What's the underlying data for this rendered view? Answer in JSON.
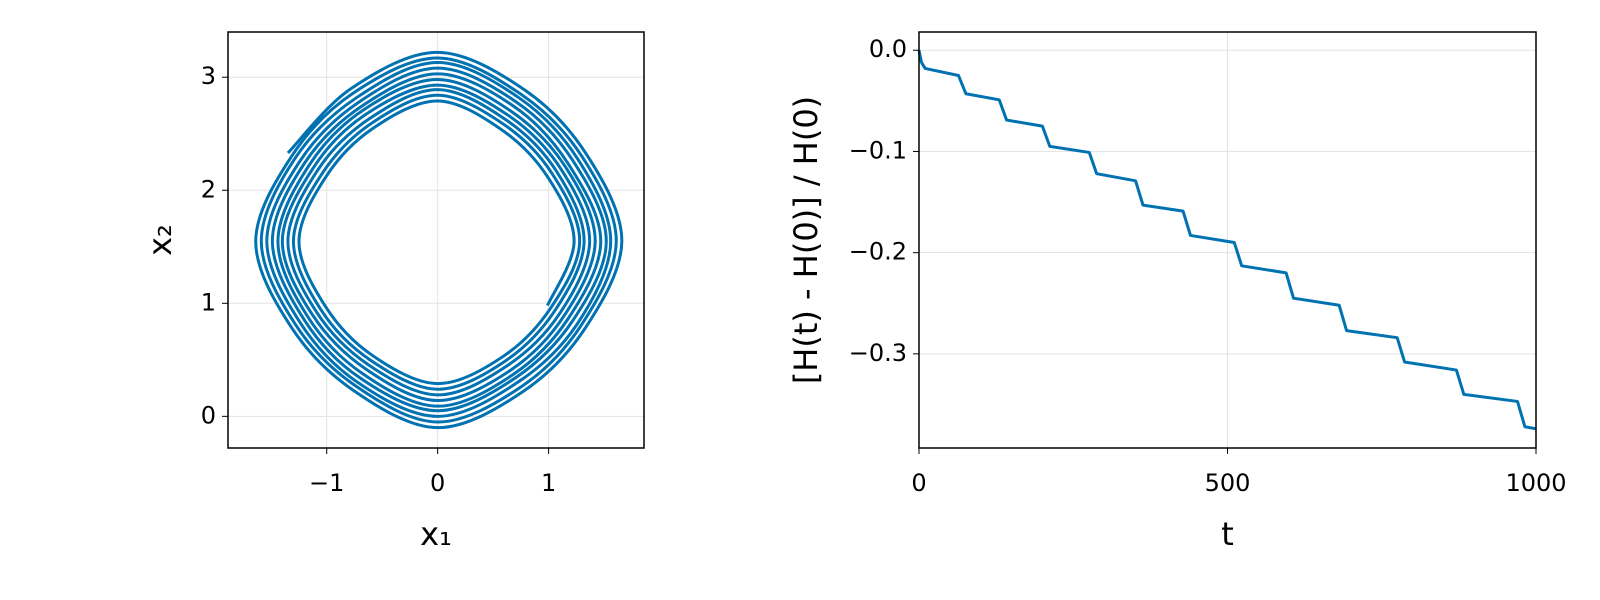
{
  "chart_data": [
    {
      "type": "line",
      "xlabel": "x₁",
      "ylabel": "x₂",
      "color": "#0072b2",
      "grid": true,
      "xlim": [
        -1.89,
        1.86
      ],
      "ylim": [
        -0.28,
        3.4
      ],
      "xticks": [
        {
          "value": -1,
          "label": "−1"
        },
        0,
        1
      ],
      "yticks": [
        0,
        1,
        2,
        3
      ],
      "x": [
        -1.35,
        -0.78,
        0,
        0.78,
        1.34,
        1.66,
        1.33,
        0.77,
        0,
        -0.76,
        -1.32,
        -1.64,
        -1.31,
        -0.76,
        0,
        0.75,
        1.3,
        1.61,
        1.29,
        0.75,
        0,
        -0.74,
        -1.28,
        -1.59,
        -1.28,
        -0.73,
        0,
        0.73,
        1.26,
        1.56,
        1.26,
        0.72,
        0,
        -0.72,
        -1.24,
        -1.54,
        -1.24,
        -0.71,
        0,
        0.71,
        1.22,
        1.52,
        1.22,
        0.7,
        0,
        -0.7,
        -1.2,
        -1.49,
        -1.2,
        -0.69,
        0,
        0.69,
        1.18,
        1.47,
        1.18,
        0.68,
        0,
        -0.68,
        -1.17,
        -1.44,
        -1.16,
        -0.67,
        0,
        0.66,
        1.15,
        1.42,
        1.14,
        0.66,
        0,
        -0.65,
        -1.13,
        -1.4,
        -1.12,
        -0.65,
        0,
        0.64,
        1.11,
        1.37,
        1.1,
        0.63,
        0,
        -0.63,
        -1.09,
        -1.35,
        -1.08,
        -0.62,
        0,
        0.62,
        1.07,
        1.32,
        1.06,
        0.61,
        0,
        -0.61,
        -1.05,
        -1.3,
        -1.04,
        -0.6,
        0,
        0.6,
        1.03,
        1.28,
        1.02,
        0.59,
        0,
        -0.59,
        -1.01,
        -1.25,
        -1.0,
        -0.58,
        0,
        0.57,
        0.99,
        1.23,
        0.99
      ],
      "values": [
        2.33,
        2.9,
        3.22,
        2.89,
        2.32,
        1.55,
        0.78,
        0.22,
        -0.1,
        0.23,
        0.79,
        1.55,
        2.31,
        2.86,
        3.17,
        2.85,
        2.3,
        1.55,
        0.8,
        0.26,
        -0.05,
        0.27,
        0.81,
        1.55,
        2.29,
        2.82,
        3.13,
        2.82,
        2.28,
        1.55,
        0.82,
        0.3,
        0,
        0.3,
        0.83,
        1.55,
        2.26,
        2.78,
        3.08,
        2.78,
        2.26,
        1.55,
        0.85,
        0.34,
        0.05,
        0.34,
        0.85,
        1.55,
        2.24,
        2.74,
        3.03,
        2.74,
        2.23,
        1.55,
        0.87,
        0.37,
        0.09,
        0.38,
        0.88,
        1.55,
        2.22,
        2.71,
        2.98,
        2.7,
        2.21,
        1.55,
        0.89,
        0.41,
        0.14,
        0.42,
        0.9,
        1.55,
        2.2,
        2.67,
        2.93,
        2.66,
        2.19,
        1.55,
        0.91,
        0.45,
        0.19,
        0.46,
        0.92,
        1.55,
        2.18,
        2.63,
        2.89,
        2.62,
        2.17,
        1.55,
        0.94,
        0.49,
        0.24,
        0.5,
        0.94,
        1.55,
        2.15,
        2.59,
        2.84,
        2.58,
        2.15,
        1.55,
        0.96,
        0.53,
        0.29,
        0.54,
        0.97,
        1.55,
        2.13,
        2.55,
        2.79,
        2.54,
        2.12,
        1.55,
        0.98
      ]
    },
    {
      "type": "line",
      "xlabel": "t",
      "ylabel": "[H(t) - H(0)] / H(0)",
      "color": "#0072b2",
      "grid": true,
      "xlim": [
        0,
        1000
      ],
      "ylim": [
        -0.393,
        0.018
      ],
      "xticks": [
        0,
        500,
        1000
      ],
      "yticks": [
        {
          "value": 0,
          "label": "0.0"
        },
        {
          "value": -0.1,
          "label": "−0.1"
        },
        {
          "value": -0.2,
          "label": "−0.2"
        },
        {
          "value": -0.3,
          "label": "−0.3"
        }
      ],
      "x": [
        0,
        4,
        10,
        64,
        76,
        130,
        142,
        200,
        212,
        276,
        288,
        351,
        363,
        428,
        440,
        511,
        523,
        595,
        607,
        681,
        693,
        775,
        787,
        871,
        883,
        970,
        982,
        1000
      ],
      "values": [
        0,
        -0.012,
        -0.018,
        -0.025,
        -0.043,
        -0.049,
        -0.069,
        -0.075,
        -0.095,
        -0.101,
        -0.122,
        -0.129,
        -0.153,
        -0.159,
        -0.183,
        -0.19,
        -0.213,
        -0.22,
        -0.245,
        -0.252,
        -0.277,
        -0.284,
        -0.308,
        -0.316,
        -0.34,
        -0.347,
        -0.372,
        -0.374
      ]
    }
  ]
}
